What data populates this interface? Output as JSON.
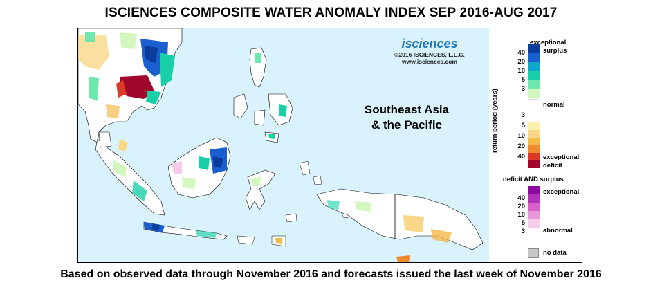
{
  "title": "ISCIENCES COMPOSITE WATER ANOMALY INDEX SEP 2016-AUG 2017",
  "footer": "Based on observed data through November 2016 and forecasts issued the last week of November 2016",
  "logo": {
    "word": "isciences",
    "copyright": "©2016 ISCIENCES, L.L.C.",
    "url": "www.isciences.com"
  },
  "region_label_line1": "Southeast Asia",
  "region_label_line2": "& the Pacific",
  "legend": {
    "axis_label": "return period (years)",
    "surplus_label_1": "exceptional",
    "surplus_label_2": "surplus",
    "normal_label": "normal",
    "deficit_label_1": "exceptional",
    "deficit_label_2": "deficit",
    "both_header": "deficit AND surplus",
    "both_exceptional": "exceptional",
    "both_abnormal": "abnormal",
    "no_data": "no data",
    "surplus_ticks": [
      "40",
      "20",
      "10",
      "5",
      "3"
    ],
    "deficit_ticks": [
      "3",
      "5",
      "10",
      "20",
      "40"
    ],
    "both_ticks": [
      "40",
      "20",
      "10",
      "5",
      "3"
    ],
    "surplus_colors": [
      "#0a3c9c",
      "#1a5fd0",
      "#10a8c8",
      "#19cfa8",
      "#6fe8b0",
      "#d4f7c0"
    ],
    "deficit_colors": [
      "#fbf0b0",
      "#f8d888",
      "#f5b94a",
      "#ef8a2e",
      "#dc3a26",
      "#a0052c"
    ],
    "both_colors": [
      "#8a0aa0",
      "#b430b8",
      "#d860c8",
      "#e898d8",
      "#f5cce8"
    ],
    "no_data_color": "#c8c8c8"
  },
  "colors": {
    "ocean": "#d9f2fb",
    "land_normal": "#ffffff",
    "border": "#000000"
  }
}
